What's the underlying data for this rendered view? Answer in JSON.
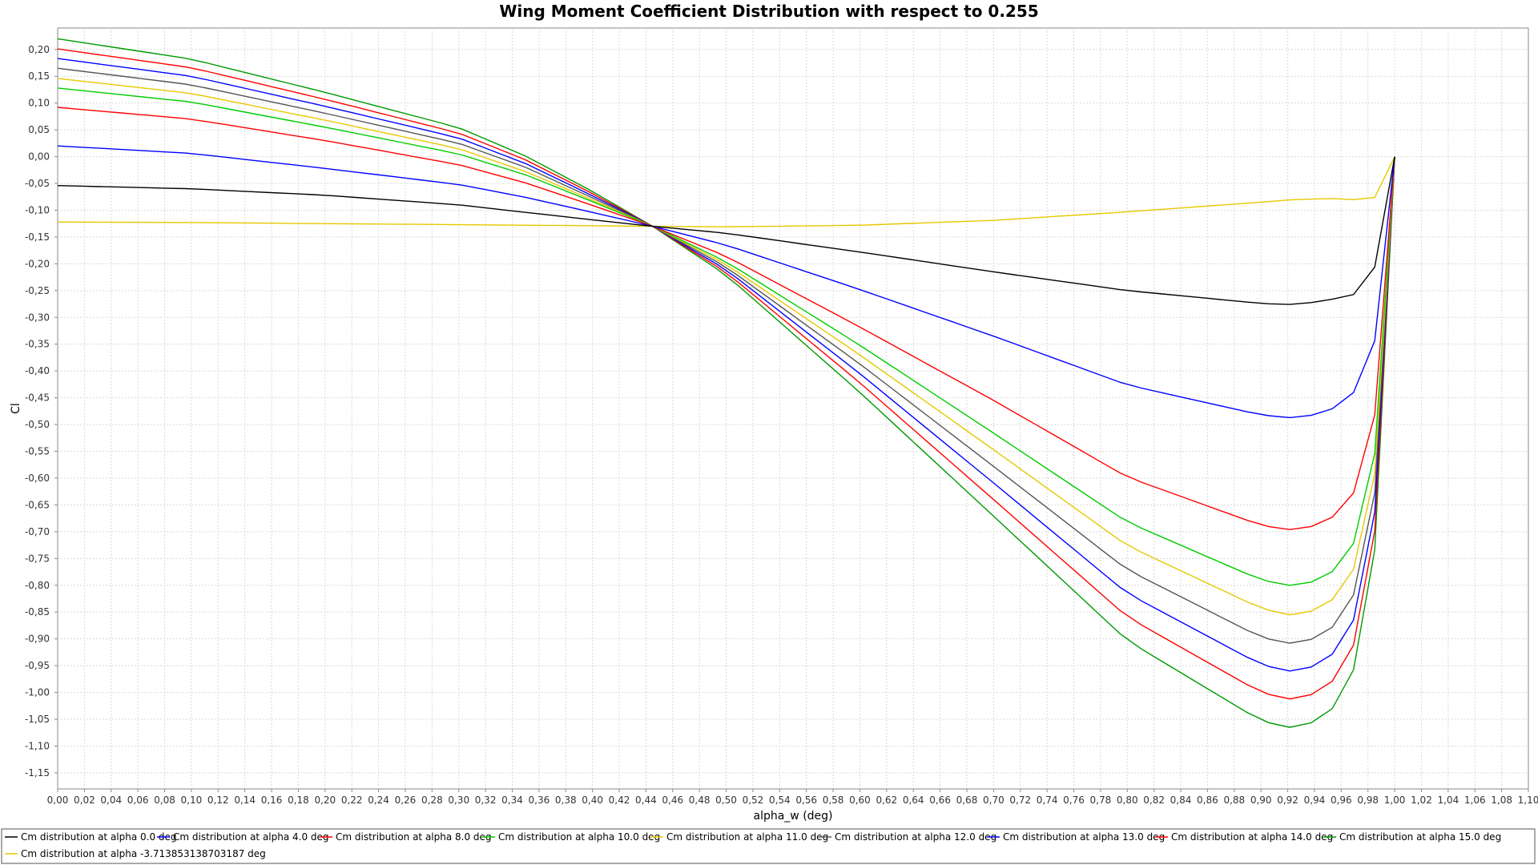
{
  "chart_data": {
    "type": "line",
    "title": "Wing Moment Coefficient Distribution with respect to 0.255",
    "xlabel": "alpha_w (deg)",
    "ylabel": "Cl",
    "xlim": [
      0,
      1.1
    ],
    "ylim": [
      -1.18,
      0.24
    ],
    "x_step": 0.02,
    "y_step": 0.05,
    "grid": true,
    "legend_position": "bottom",
    "decimal_separator": ",",
    "x": [
      0,
      0.0159,
      0.0315,
      0.0476,
      0.0634,
      0.0789,
      0.0955,
      0.1114,
      0.1276,
      0.1434,
      0.1593,
      0.1752,
      0.1911,
      0.2069,
      0.2229,
      0.2387,
      0.2546,
      0.2707,
      0.2866,
      0.3025,
      0.3183,
      0.3342,
      0.3501,
      0.366,
      0.3818,
      0.3977,
      0.4136,
      0.4295,
      0.4453,
      0.4612,
      0.4771,
      0.493,
      0.5088,
      0.5247,
      0.5406,
      0.5565,
      0.5723,
      0.5882,
      0.6041,
      0.62,
      0.6358,
      0.6517,
      0.6676,
      0.6835,
      0.6993,
      0.7152,
      0.7311,
      0.747,
      0.7628,
      0.7787,
      0.7946,
      0.8105,
      0.8263,
      0.8422,
      0.8581,
      0.874,
      0.8898,
      0.9057,
      0.9216,
      0.9375,
      0.9533,
      0.9692,
      0.9851,
      1.0
    ],
    "series": [
      {
        "name": "Cm distribution at alpha 0.0 deg",
        "color": "#000000",
        "anchors": [
          [
            0,
            -0.054
          ],
          [
            0.1,
            -0.06
          ],
          [
            0.2,
            -0.072
          ],
          [
            0.3,
            -0.09
          ],
          [
            0.35,
            -0.104
          ],
          [
            0.4,
            -0.118
          ],
          [
            0.445,
            -0.13
          ],
          [
            0.5,
            -0.143
          ],
          [
            0.6,
            -0.178
          ],
          [
            0.7,
            -0.215
          ],
          [
            0.8,
            -0.25
          ],
          [
            0.9,
            -0.274
          ],
          [
            0.92,
            -0.276
          ],
          [
            0.93,
            -0.275
          ],
          [
            0.95,
            -0.268
          ],
          [
            0.97,
            -0.257
          ],
          [
            0.983,
            -0.235
          ],
          [
            1.0,
            0.0
          ]
        ]
      },
      {
        "name": "Cm distribution at alpha 4.0 deg",
        "color": "#0000ff",
        "anchors": [
          [
            0,
            0.02
          ],
          [
            0.1,
            0.006
          ],
          [
            0.2,
            -0.022
          ],
          [
            0.3,
            -0.052
          ],
          [
            0.35,
            -0.076
          ],
          [
            0.4,
            -0.104
          ],
          [
            0.445,
            -0.13
          ],
          [
            0.5,
            -0.165
          ],
          [
            0.6,
            -0.248
          ],
          [
            0.7,
            -0.335
          ],
          [
            0.8,
            -0.426
          ],
          [
            0.9,
            -0.482
          ],
          [
            0.92,
            -0.487
          ],
          [
            0.93,
            -0.487
          ],
          [
            0.95,
            -0.476
          ],
          [
            0.967,
            -0.448
          ],
          [
            0.983,
            -0.392
          ],
          [
            1.0,
            0.0
          ]
        ]
      },
      {
        "name": "Cm distribution at alpha 8.0 deg",
        "color": "#ff0000",
        "anchors": [
          [
            0,
            0.092
          ],
          [
            0.1,
            0.07
          ],
          [
            0.2,
            0.03
          ],
          [
            0.3,
            -0.015
          ],
          [
            0.35,
            -0.049
          ],
          [
            0.4,
            -0.091
          ],
          [
            0.445,
            -0.13
          ],
          [
            0.5,
            -0.186
          ],
          [
            0.6,
            -0.318
          ],
          [
            0.7,
            -0.455
          ],
          [
            0.8,
            -0.598
          ],
          [
            0.9,
            -0.688
          ],
          [
            0.92,
            -0.696
          ],
          [
            0.93,
            -0.696
          ],
          [
            0.95,
            -0.681
          ],
          [
            0.967,
            -0.64
          ],
          [
            0.983,
            -0.55
          ],
          [
            1.0,
            0.0
          ]
        ]
      },
      {
        "name": "Cm distribution at alpha 10.0 deg",
        "color": "#00cc00",
        "anchors": [
          [
            0,
            0.128
          ],
          [
            0.1,
            0.102
          ],
          [
            0.2,
            0.055
          ],
          [
            0.3,
            0.005
          ],
          [
            0.35,
            -0.034
          ],
          [
            0.4,
            -0.084
          ],
          [
            0.445,
            -0.13
          ],
          [
            0.5,
            -0.196
          ],
          [
            0.6,
            -0.352
          ],
          [
            0.7,
            -0.516
          ],
          [
            0.8,
            -0.682
          ],
          [
            0.9,
            -0.79
          ],
          [
            0.92,
            -0.8
          ],
          [
            0.93,
            -0.8
          ],
          [
            0.95,
            -0.784
          ],
          [
            0.967,
            -0.736
          ],
          [
            0.983,
            -0.632
          ],
          [
            1.0,
            0.0
          ]
        ]
      },
      {
        "name": "Cm distribution at alpha 11.0 deg",
        "color": "#e6c800",
        "anchors": [
          [
            0,
            0.146
          ],
          [
            0.1,
            0.118
          ],
          [
            0.2,
            0.068
          ],
          [
            0.3,
            0.015
          ],
          [
            0.35,
            -0.028
          ],
          [
            0.4,
            -0.081
          ],
          [
            0.445,
            -0.13
          ],
          [
            0.5,
            -0.201
          ],
          [
            0.6,
            -0.37
          ],
          [
            0.7,
            -0.547
          ],
          [
            0.8,
            -0.726
          ],
          [
            0.9,
            -0.843
          ],
          [
            0.92,
            -0.855
          ],
          [
            0.93,
            -0.855
          ],
          [
            0.95,
            -0.837
          ],
          [
            0.967,
            -0.785
          ],
          [
            0.983,
            -0.675
          ],
          [
            1.0,
            0.0
          ]
        ]
      },
      {
        "name": "Cm distribution at alpha 12.0 deg",
        "color": "#555555",
        "anchors": [
          [
            0,
            0.165
          ],
          [
            0.1,
            0.134
          ],
          [
            0.2,
            0.081
          ],
          [
            0.3,
            0.025
          ],
          [
            0.35,
            -0.02
          ],
          [
            0.4,
            -0.077
          ],
          [
            0.445,
            -0.13
          ],
          [
            0.5,
            -0.206
          ],
          [
            0.6,
            -0.387
          ],
          [
            0.7,
            -0.578
          ],
          [
            0.8,
            -0.771
          ],
          [
            0.9,
            -0.897
          ],
          [
            0.92,
            -0.908
          ],
          [
            0.93,
            -0.908
          ],
          [
            0.95,
            -0.889
          ],
          [
            0.967,
            -0.834
          ],
          [
            0.983,
            -0.716
          ],
          [
            1.0,
            0.0
          ]
        ]
      },
      {
        "name": "Cm distribution at alpha 13.0 deg",
        "color": "#0000ff",
        "anchors": [
          [
            0,
            0.183
          ],
          [
            0.1,
            0.15
          ],
          [
            0.2,
            0.094
          ],
          [
            0.3,
            0.035
          ],
          [
            0.35,
            -0.013
          ],
          [
            0.4,
            -0.073
          ],
          [
            0.445,
            -0.13
          ],
          [
            0.5,
            -0.211
          ],
          [
            0.6,
            -0.405
          ],
          [
            0.7,
            -0.609
          ],
          [
            0.8,
            -0.815
          ],
          [
            0.9,
            -0.948
          ],
          [
            0.92,
            -0.96
          ],
          [
            0.93,
            -0.96
          ],
          [
            0.95,
            -0.94
          ],
          [
            0.967,
            -0.882
          ],
          [
            0.983,
            -0.757
          ],
          [
            1.0,
            0.0
          ]
        ]
      },
      {
        "name": "Cm distribution at alpha 14.0 deg",
        "color": "#ff0000",
        "anchors": [
          [
            0,
            0.201
          ],
          [
            0.1,
            0.166
          ],
          [
            0.2,
            0.107
          ],
          [
            0.3,
            0.044
          ],
          [
            0.35,
            -0.006
          ],
          [
            0.4,
            -0.069
          ],
          [
            0.445,
            -0.13
          ],
          [
            0.5,
            -0.216
          ],
          [
            0.6,
            -0.422
          ],
          [
            0.7,
            -0.64
          ],
          [
            0.8,
            -0.859
          ],
          [
            0.9,
            -1.0
          ],
          [
            0.92,
            -1.012
          ],
          [
            0.93,
            -1.012
          ],
          [
            0.95,
            -0.991
          ],
          [
            0.967,
            -0.93
          ],
          [
            0.983,
            -0.797
          ],
          [
            1.0,
            0.0
          ]
        ]
      },
      {
        "name": "Cm distribution at alpha 15.0 deg",
        "color": "#009900",
        "anchors": [
          [
            0,
            0.22
          ],
          [
            0.1,
            0.182
          ],
          [
            0.2,
            0.12
          ],
          [
            0.3,
            0.054
          ],
          [
            0.35,
            0.001
          ],
          [
            0.4,
            -0.065
          ],
          [
            0.445,
            -0.13
          ],
          [
            0.5,
            -0.221
          ],
          [
            0.6,
            -0.44
          ],
          [
            0.7,
            -0.671
          ],
          [
            0.8,
            -0.903
          ],
          [
            0.9,
            -1.053
          ],
          [
            0.92,
            -1.065
          ],
          [
            0.93,
            -1.065
          ],
          [
            0.95,
            -1.043
          ],
          [
            0.967,
            -0.977
          ],
          [
            0.983,
            -0.837
          ],
          [
            1.0,
            0.0
          ]
        ]
      },
      {
        "name": "Cm distribution at alpha -3.713853138703187 deg",
        "color": "#e6c800",
        "anchors": [
          [
            0,
            -0.122
          ],
          [
            0.1,
            -0.123
          ],
          [
            0.2,
            -0.125
          ],
          [
            0.3,
            -0.127
          ],
          [
            0.35,
            -0.128
          ],
          [
            0.4,
            -0.129
          ],
          [
            0.445,
            -0.13
          ],
          [
            0.5,
            -0.131
          ],
          [
            0.6,
            -0.128
          ],
          [
            0.7,
            -0.119
          ],
          [
            0.8,
            -0.103
          ],
          [
            0.9,
            -0.085
          ],
          [
            0.92,
            -0.081
          ],
          [
            0.93,
            -0.08
          ],
          [
            0.95,
            -0.078
          ],
          [
            0.967,
            -0.079
          ],
          [
            0.983,
            -0.087
          ],
          [
            1.0,
            0.0
          ]
        ]
      }
    ]
  }
}
